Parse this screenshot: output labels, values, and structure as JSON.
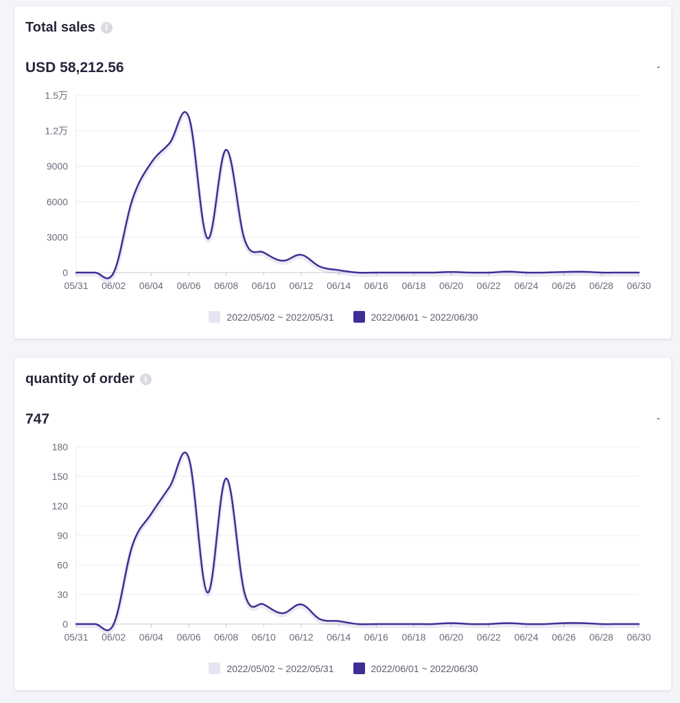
{
  "colors": {
    "current": "#3f2e96",
    "previous": "#e6e6f2",
    "grid": "#ececf2",
    "axis": "#c8c8d4"
  },
  "cards": [
    {
      "title": "Total sales",
      "info_icon": "info-icon",
      "value": "USD 58,212.56",
      "change": "-"
    },
    {
      "title": "quantity of order",
      "info_icon": "info-icon",
      "value": "747",
      "change": "-"
    }
  ],
  "legend": {
    "previous": "2022/05/02 ~ 2022/05/31",
    "current": "2022/06/01 ~ 2022/06/30"
  },
  "chart_data": [
    {
      "type": "line",
      "x": [
        "05/31",
        "06/01",
        "06/02",
        "06/03",
        "06/04",
        "06/05",
        "06/06",
        "06/07",
        "06/08",
        "06/09",
        "06/10",
        "06/11",
        "06/12",
        "06/13",
        "06/14",
        "06/15",
        "06/16",
        "06/17",
        "06/18",
        "06/19",
        "06/20",
        "06/21",
        "06/22",
        "06/23",
        "06/24",
        "06/25",
        "06/26",
        "06/27",
        "06/28",
        "06/29",
        "06/30"
      ],
      "x_tick_labels": [
        "05/31",
        "06/02",
        "06/04",
        "06/06",
        "06/08",
        "06/10",
        "06/12",
        "06/14",
        "06/16",
        "06/18",
        "06/20",
        "06/22",
        "06/24",
        "06/26",
        "06/28",
        "06/30"
      ],
      "y_tick_labels": [
        "0",
        "3000",
        "6000",
        "9000",
        "1.2万",
        "1.5万"
      ],
      "ylim": [
        0,
        15000
      ],
      "grid": true,
      "legend_position": "bottom",
      "series": [
        {
          "name": "2022/06/01 ~ 2022/06/30",
          "values": [
            0,
            0,
            0,
            6200,
            9300,
            11000,
            13200,
            2900,
            10400,
            2700,
            1700,
            1000,
            1500,
            500,
            200,
            0,
            0,
            0,
            0,
            0,
            50,
            0,
            0,
            80,
            0,
            0,
            50,
            70,
            0,
            0,
            0
          ]
        }
      ]
    },
    {
      "type": "line",
      "x": [
        "05/31",
        "06/01",
        "06/02",
        "06/03",
        "06/04",
        "06/05",
        "06/06",
        "06/07",
        "06/08",
        "06/09",
        "06/10",
        "06/11",
        "06/12",
        "06/13",
        "06/14",
        "06/15",
        "06/16",
        "06/17",
        "06/18",
        "06/19",
        "06/20",
        "06/21",
        "06/22",
        "06/23",
        "06/24",
        "06/25",
        "06/26",
        "06/27",
        "06/28",
        "06/29",
        "06/30"
      ],
      "x_tick_labels": [
        "05/31",
        "06/02",
        "06/04",
        "06/06",
        "06/08",
        "06/10",
        "06/12",
        "06/14",
        "06/16",
        "06/18",
        "06/20",
        "06/22",
        "06/24",
        "06/26",
        "06/28",
        "06/30"
      ],
      "y_tick_labels": [
        "0",
        "30",
        "60",
        "90",
        "120",
        "150",
        "180"
      ],
      "ylim": [
        0,
        180
      ],
      "grid": true,
      "legend_position": "bottom",
      "series": [
        {
          "name": "2022/06/01 ~ 2022/06/30",
          "values": [
            0,
            0,
            0,
            80,
            112,
            140,
            169,
            32,
            148,
            30,
            20,
            11,
            20,
            5,
            3,
            0,
            0,
            0,
            0,
            0,
            1,
            0,
            0,
            1,
            0,
            0,
            1,
            1,
            0,
            0,
            0
          ]
        }
      ]
    }
  ]
}
